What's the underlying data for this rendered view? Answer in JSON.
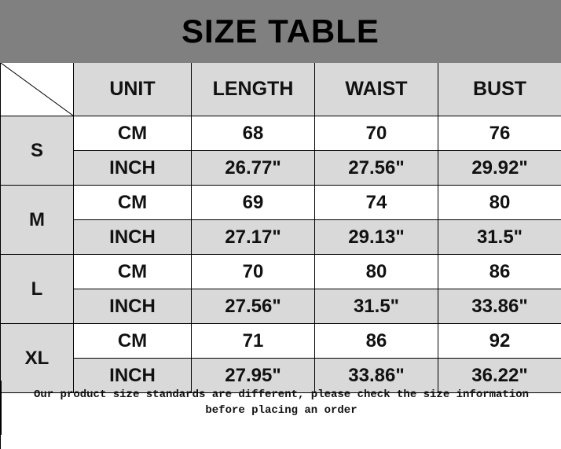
{
  "title": "SIZE TABLE",
  "headers": [
    "UNIT",
    "LENGTH",
    "WAIST",
    "BUST"
  ],
  "sizes": [
    {
      "size": "S",
      "rows": [
        [
          "CM",
          "68",
          "70",
          "76"
        ],
        [
          "INCH",
          "26.77\"",
          "27.56\"",
          "29.92\""
        ]
      ]
    },
    {
      "size": "M",
      "rows": [
        [
          "CM",
          "69",
          "74",
          "80"
        ],
        [
          "INCH",
          "27.17\"",
          "29.13\"",
          "31.5\""
        ]
      ]
    },
    {
      "size": "L",
      "rows": [
        [
          "CM",
          "70",
          "80",
          "86"
        ],
        [
          "INCH",
          "27.56\"",
          "31.5\"",
          "33.86\""
        ]
      ]
    },
    {
      "size": "XL",
      "rows": [
        [
          "CM",
          "71",
          "86",
          "92"
        ],
        [
          "INCH",
          "27.95\"",
          "33.86\"",
          "36.22\""
        ]
      ]
    }
  ],
  "footer": {
    "line1": "Our product size standards are different, please check the size information",
    "line2": "before placing an order"
  },
  "colors": {
    "title_bg": "#808080",
    "cell_gray": "#d9d9d9",
    "cell_white": "#ffffff"
  }
}
